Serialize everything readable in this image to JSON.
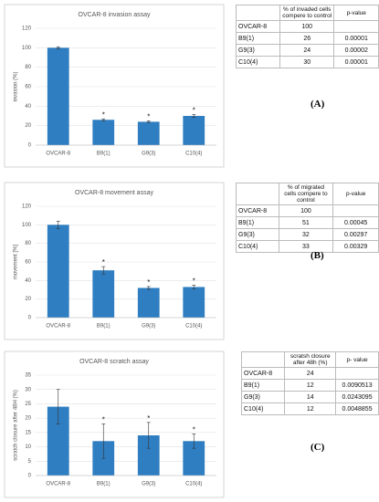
{
  "chart_data": [
    {
      "type": "bar",
      "title": "OVCAR-8 invasion assay",
      "y_label": "invasion (%)",
      "color": "#2f7ec1",
      "categories": [
        "OVCAR-8",
        "B9(1)",
        "G9(3)",
        "C10(4)"
      ],
      "values": [
        100,
        26,
        24,
        30
      ],
      "errors": [
        1,
        1,
        1,
        1.5
      ],
      "significance": [
        null,
        "*",
        "*",
        "*"
      ],
      "ylim": [
        0,
        120
      ],
      "yticks": [
        0,
        20,
        40,
        60,
        80,
        100,
        120
      ],
      "grid": true
    },
    {
      "type": "bar",
      "title": "OVCAR-8 movement assay",
      "y_label": "movement [%]",
      "color": "#2f7ec1",
      "categories": [
        "OVCAR-8",
        "B9(1)",
        "G9(3)",
        "C10(4)"
      ],
      "values": [
        100,
        51,
        32,
        33
      ],
      "errors": [
        4,
        4,
        1.5,
        2
      ],
      "significance": [
        null,
        "*",
        "*",
        "*"
      ],
      "ylim": [
        0,
        120
      ],
      "yticks": [
        0,
        20,
        40,
        60,
        80,
        100,
        120
      ],
      "grid": true
    },
    {
      "type": "bar",
      "title": "OVCAR-8 scratch assay",
      "y_label": "scratch closure after 48H (%)",
      "color": "#2f7ec1",
      "categories": [
        "OVCAR-8",
        "B9(1)",
        "G9(3)",
        "C10(4)"
      ],
      "values": [
        24,
        12,
        14,
        12
      ],
      "errors": [
        6,
        6,
        4.5,
        2.5
      ],
      "significance": [
        null,
        "*",
        "*",
        "*"
      ],
      "ylim": [
        0,
        35
      ],
      "yticks": [
        0,
        5,
        10,
        15,
        20,
        25,
        30,
        35
      ],
      "grid": true
    }
  ],
  "tables": [
    {
      "header": [
        "% of invaded cells compere to control",
        "p-value"
      ],
      "rows": [
        [
          "OVCAR-8",
          "100"
        ],
        [
          "B9(1)",
          "26",
          "0.00001"
        ],
        [
          "G9(3)",
          "24",
          "0.00002"
        ],
        [
          "C10(4)",
          "30",
          "0.00001"
        ]
      ]
    },
    {
      "header": [
        "% of migrated cells compere to control",
        "p-value"
      ],
      "rows": [
        [
          "OVCAR-8",
          "100"
        ],
        [
          "B9(1)",
          "51",
          "0.00045"
        ],
        [
          "G9(3)",
          "32",
          "0.00297"
        ],
        [
          "C10(4)",
          "33",
          "0.00329"
        ]
      ]
    },
    {
      "header": [
        "scratsh closure after 48h (%)",
        "p- value"
      ],
      "rows": [
        [
          "OVCAR-8",
          "24"
        ],
        [
          "B9(1)",
          "12",
          "0.0090513"
        ],
        [
          "G9(3)",
          "14",
          "0.0243095"
        ],
        [
          "C10(4)",
          "12",
          "0.0048855"
        ]
      ]
    }
  ],
  "panel_labels": [
    "(A)",
    "(B)",
    "(C)"
  ]
}
